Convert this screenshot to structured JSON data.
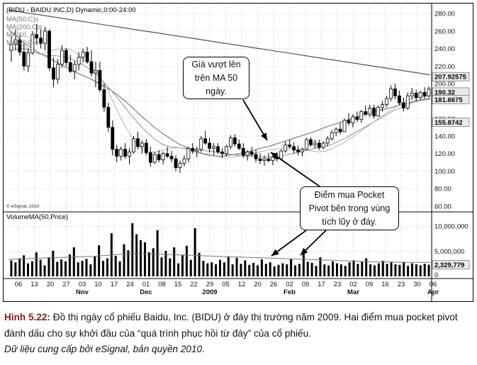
{
  "chart_data": {
    "type": "candlestick",
    "title": "(BIDU - BAIDU INC,D) Dynamic,0:00-24:00",
    "overlay_legend": [
      "MA(50,C)s",
      "MA(200,C)s",
      "MA(10,...)",
      "MA(20,C)s"
    ],
    "price_axis": {
      "ylim": [
        55,
        285
      ],
      "ticks": [
        60,
        80,
        100,
        120,
        140,
        160,
        180,
        200,
        220,
        240,
        260,
        280
      ],
      "tick_labels": [
        "60.00",
        "80.00",
        "100.00",
        "120.00",
        "140.00",
        "160.00",
        "180.00",
        "200.00",
        "220.00",
        "240.00",
        "260.00",
        "280.00"
      ],
      "highlight_labels": [
        {
          "value": 207.93,
          "text": "207.92575"
        },
        {
          "value": 190.32,
          "text": "190.32"
        },
        {
          "value": 181.67,
          "text": "181.6675"
        },
        {
          "value": 155.87,
          "text": "155.8742"
        }
      ]
    },
    "x_axis": {
      "day_labels": [
        "06",
        "13",
        "20",
        "27",
        "03",
        "10",
        "17",
        "24",
        "01",
        "08",
        "15",
        "22",
        "29",
        "05",
        "12",
        "20",
        "26",
        "02",
        "09",
        "17",
        "23",
        "02",
        "09",
        "16",
        "23",
        "30",
        "06"
      ],
      "month_labels": [
        {
          "text": "Nov",
          "day_index": 4
        },
        {
          "text": "Dec",
          "day_index": 8
        },
        {
          "text": "2009",
          "day_index": 12
        },
        {
          "text": "Feb",
          "day_index": 17
        },
        {
          "text": "Mar",
          "day_index": 21
        },
        {
          "text": "Apr",
          "day_index": 26
        }
      ]
    },
    "candles": [
      {
        "o": 238,
        "h": 255,
        "l": 225,
        "c": 245
      },
      {
        "o": 245,
        "h": 262,
        "l": 238,
        "c": 250
      },
      {
        "o": 250,
        "h": 256,
        "l": 232,
        "c": 236
      },
      {
        "o": 236,
        "h": 245,
        "l": 215,
        "c": 220
      },
      {
        "o": 220,
        "h": 240,
        "l": 213,
        "c": 235
      },
      {
        "o": 235,
        "h": 260,
        "l": 233,
        "c": 256
      },
      {
        "o": 256,
        "h": 268,
        "l": 245,
        "c": 252
      },
      {
        "o": 252,
        "h": 262,
        "l": 240,
        "c": 246
      },
      {
        "o": 246,
        "h": 265,
        "l": 238,
        "c": 260
      },
      {
        "o": 260,
        "h": 262,
        "l": 215,
        "c": 218
      },
      {
        "o": 218,
        "h": 230,
        "l": 196,
        "c": 205
      },
      {
        "o": 205,
        "h": 228,
        "l": 200,
        "c": 222
      },
      {
        "o": 222,
        "h": 244,
        "l": 218,
        "c": 238
      },
      {
        "o": 238,
        "h": 241,
        "l": 220,
        "c": 224
      },
      {
        "o": 224,
        "h": 233,
        "l": 212,
        "c": 214
      },
      {
        "o": 214,
        "h": 226,
        "l": 205,
        "c": 222
      },
      {
        "o": 222,
        "h": 236,
        "l": 215,
        "c": 230
      },
      {
        "o": 230,
        "h": 240,
        "l": 224,
        "c": 236
      },
      {
        "o": 236,
        "h": 242,
        "l": 223,
        "c": 225
      },
      {
        "o": 225,
        "h": 238,
        "l": 208,
        "c": 212
      },
      {
        "o": 212,
        "h": 225,
        "l": 196,
        "c": 215
      },
      {
        "o": 215,
        "h": 225,
        "l": 190,
        "c": 193
      },
      {
        "o": 193,
        "h": 200,
        "l": 168,
        "c": 173
      },
      {
        "o": 173,
        "h": 178,
        "l": 145,
        "c": 150
      },
      {
        "o": 150,
        "h": 158,
        "l": 118,
        "c": 125
      },
      {
        "o": 125,
        "h": 130,
        "l": 110,
        "c": 117
      },
      {
        "o": 117,
        "h": 128,
        "l": 112,
        "c": 125
      },
      {
        "o": 125,
        "h": 132,
        "l": 114,
        "c": 117
      },
      {
        "o": 117,
        "h": 126,
        "l": 108,
        "c": 122
      },
      {
        "o": 122,
        "h": 140,
        "l": 120,
        "c": 137
      },
      {
        "o": 137,
        "h": 145,
        "l": 125,
        "c": 128
      },
      {
        "o": 128,
        "h": 135,
        "l": 120,
        "c": 132
      },
      {
        "o": 132,
        "h": 137,
        "l": 118,
        "c": 121
      },
      {
        "o": 121,
        "h": 128,
        "l": 105,
        "c": 110
      },
      {
        "o": 110,
        "h": 122,
        "l": 108,
        "c": 119
      },
      {
        "o": 119,
        "h": 124,
        "l": 110,
        "c": 113
      },
      {
        "o": 113,
        "h": 122,
        "l": 108,
        "c": 120
      },
      {
        "o": 120,
        "h": 128,
        "l": 115,
        "c": 117
      },
      {
        "o": 117,
        "h": 123,
        "l": 110,
        "c": 114
      },
      {
        "o": 114,
        "h": 118,
        "l": 100,
        "c": 104
      },
      {
        "o": 104,
        "h": 112,
        "l": 98,
        "c": 109
      },
      {
        "o": 109,
        "h": 118,
        "l": 105,
        "c": 114
      },
      {
        "o": 114,
        "h": 128,
        "l": 110,
        "c": 126
      },
      {
        "o": 126,
        "h": 132,
        "l": 120,
        "c": 123
      },
      {
        "o": 123,
        "h": 128,
        "l": 116,
        "c": 125
      },
      {
        "o": 125,
        "h": 140,
        "l": 122,
        "c": 137
      },
      {
        "o": 137,
        "h": 146,
        "l": 130,
        "c": 132
      },
      {
        "o": 132,
        "h": 138,
        "l": 121,
        "c": 126
      },
      {
        "o": 126,
        "h": 132,
        "l": 118,
        "c": 128
      },
      {
        "o": 128,
        "h": 132,
        "l": 120,
        "c": 122
      },
      {
        "o": 122,
        "h": 126,
        "l": 115,
        "c": 120
      },
      {
        "o": 120,
        "h": 130,
        "l": 117,
        "c": 128
      },
      {
        "o": 128,
        "h": 141,
        "l": 125,
        "c": 138
      },
      {
        "o": 138,
        "h": 142,
        "l": 128,
        "c": 131
      },
      {
        "o": 131,
        "h": 136,
        "l": 124,
        "c": 126
      },
      {
        "o": 126,
        "h": 132,
        "l": 115,
        "c": 118
      },
      {
        "o": 118,
        "h": 124,
        "l": 112,
        "c": 122
      },
      {
        "o": 122,
        "h": 128,
        "l": 117,
        "c": 119
      },
      {
        "o": 119,
        "h": 124,
        "l": 110,
        "c": 114
      },
      {
        "o": 114,
        "h": 120,
        "l": 108,
        "c": 112
      },
      {
        "o": 112,
        "h": 118,
        "l": 106,
        "c": 114
      },
      {
        "o": 114,
        "h": 121,
        "l": 110,
        "c": 112
      },
      {
        "o": 112,
        "h": 118,
        "l": 107,
        "c": 116
      },
      {
        "o": 116,
        "h": 122,
        "l": 111,
        "c": 114
      },
      {
        "o": 114,
        "h": 125,
        "l": 112,
        "c": 123
      },
      {
        "o": 123,
        "h": 134,
        "l": 121,
        "c": 130
      },
      {
        "o": 130,
        "h": 136,
        "l": 126,
        "c": 128
      },
      {
        "o": 128,
        "h": 133,
        "l": 120,
        "c": 124
      },
      {
        "o": 124,
        "h": 129,
        "l": 118,
        "c": 122
      },
      {
        "o": 122,
        "h": 127,
        "l": 117,
        "c": 125
      },
      {
        "o": 125,
        "h": 138,
        "l": 124,
        "c": 136
      },
      {
        "o": 136,
        "h": 139,
        "l": 128,
        "c": 130
      },
      {
        "o": 130,
        "h": 136,
        "l": 126,
        "c": 132
      },
      {
        "o": 132,
        "h": 136,
        "l": 124,
        "c": 127
      },
      {
        "o": 127,
        "h": 134,
        "l": 125,
        "c": 132
      },
      {
        "o": 132,
        "h": 140,
        "l": 128,
        "c": 137
      },
      {
        "o": 137,
        "h": 147,
        "l": 135,
        "c": 144
      },
      {
        "o": 144,
        "h": 150,
        "l": 140,
        "c": 148
      },
      {
        "o": 148,
        "h": 155,
        "l": 142,
        "c": 145
      },
      {
        "o": 145,
        "h": 160,
        "l": 145,
        "c": 158
      },
      {
        "o": 158,
        "h": 166,
        "l": 152,
        "c": 155
      },
      {
        "o": 155,
        "h": 165,
        "l": 150,
        "c": 162
      },
      {
        "o": 162,
        "h": 168,
        "l": 156,
        "c": 159
      },
      {
        "o": 159,
        "h": 170,
        "l": 155,
        "c": 168
      },
      {
        "o": 168,
        "h": 175,
        "l": 163,
        "c": 165
      },
      {
        "o": 165,
        "h": 176,
        "l": 162,
        "c": 172
      },
      {
        "o": 172,
        "h": 176,
        "l": 160,
        "c": 163
      },
      {
        "o": 163,
        "h": 175,
        "l": 162,
        "c": 173
      },
      {
        "o": 173,
        "h": 180,
        "l": 168,
        "c": 176
      },
      {
        "o": 176,
        "h": 186,
        "l": 173,
        "c": 183
      },
      {
        "o": 183,
        "h": 198,
        "l": 180,
        "c": 194
      },
      {
        "o": 194,
        "h": 200,
        "l": 182,
        "c": 186
      },
      {
        "o": 186,
        "h": 192,
        "l": 175,
        "c": 178
      },
      {
        "o": 178,
        "h": 184,
        "l": 168,
        "c": 172
      },
      {
        "o": 172,
        "h": 190,
        "l": 170,
        "c": 186
      },
      {
        "o": 186,
        "h": 195,
        "l": 182,
        "c": 189
      },
      {
        "o": 189,
        "h": 193,
        "l": 180,
        "c": 184
      },
      {
        "o": 184,
        "h": 192,
        "l": 182,
        "c": 190
      },
      {
        "o": 190,
        "h": 196,
        "l": 183,
        "c": 186
      },
      {
        "o": 186,
        "h": 197,
        "l": 184,
        "c": 194
      }
    ],
    "moving_averages": [
      {
        "name": "MA(200,C)",
        "values": [
          284,
          282,
          280,
          278,
          276,
          274,
          272,
          270,
          268,
          266,
          264,
          262,
          260,
          258,
          256,
          254,
          252,
          250,
          248,
          246,
          244,
          242,
          240,
          238,
          236,
          234,
          232,
          230,
          228,
          226,
          224,
          222,
          220,
          218,
          216,
          214,
          212,
          210
        ]
      },
      {
        "name": "MA(50,C)",
        "values": [
          262,
          254,
          246,
          240,
          234,
          229,
          224,
          219,
          214,
          210,
          206,
          201,
          196,
          190,
          183,
          175,
          166,
          158,
          150,
          143,
          137,
          131,
          127,
          123,
          120,
          118,
          117,
          118,
          119,
          121,
          123,
          126,
          128,
          131,
          134,
          137,
          140,
          143,
          146,
          150,
          153,
          156,
          159,
          162,
          165,
          168,
          170,
          172,
          175,
          177,
          180,
          182,
          183
        ]
      },
      {
        "name": "MA(20,C)",
        "values": [
          238,
          239,
          240,
          238,
          234,
          232,
          232,
          231,
          229,
          225,
          220,
          214,
          206,
          196,
          186,
          175,
          164,
          154,
          145,
          137,
          131,
          128,
          127,
          126,
          125,
          124,
          123,
          122,
          120,
          119,
          118,
          117,
          117,
          116,
          116,
          117,
          118,
          120,
          122,
          124,
          126,
          128,
          130,
          134,
          138,
          143,
          148,
          153,
          158,
          163,
          168,
          172,
          176,
          179,
          181,
          182
        ]
      },
      {
        "name": "MA(10,C)",
        "values": [
          244,
          246,
          244,
          238,
          234,
          235,
          238,
          240,
          240,
          236,
          229,
          221,
          212,
          199,
          182,
          164,
          148,
          135,
          126,
          122,
          122,
          124,
          126,
          127,
          125,
          122,
          120,
          118,
          117,
          116,
          116,
          117,
          118,
          120,
          122,
          124,
          125,
          126,
          126,
          125,
          124,
          123,
          122,
          123,
          127,
          131,
          136,
          142,
          148,
          154,
          160,
          166,
          171,
          177,
          181,
          184,
          185,
          186
        ]
      }
    ],
    "volume": {
      "title": "VolumeMA(50,Price)",
      "ylim": [
        0,
        12000000
      ],
      "ticks": [
        5000000,
        10000000
      ],
      "tick_labels": [
        "5,000,000",
        "10,000,000"
      ],
      "last_value_label": "2,329,779",
      "values": [
        3.2,
        2.8,
        3.6,
        4.2,
        2.6,
        3.0,
        4.8,
        3.3,
        2.2,
        3.8,
        5.1,
        2.9,
        3.4,
        3.0,
        4.4,
        5.8,
        2.8,
        3.1,
        3.5,
        2.4,
        4.0,
        6.2,
        3.1,
        3.6,
        8.6,
        4.1,
        3.0,
        6.4,
        5.2,
        10.6,
        8.4,
        7.2,
        6.8,
        4.8,
        5.6,
        9.2,
        3.8,
        5.1,
        3.6,
        5.8,
        2.6,
        4.2,
        6.1,
        3.3,
        9.6,
        4.7,
        3.1,
        2.6,
        2.8,
        2.4,
        3.3,
        2.8,
        3.9,
        2.4,
        3.7,
        2.5,
        3.2,
        2.3,
        2.7,
        2.2,
        3.4,
        2.5,
        2.8,
        2.0,
        2.3,
        2.6,
        2.4,
        3.5,
        2.2,
        2.5,
        4.9,
        2.9,
        2.7,
        2.1,
        3.8,
        2.4,
        2.2,
        3.0,
        2.6,
        2.4,
        2.1,
        2.8,
        3.2,
        2.5,
        2.9,
        3.6,
        2.4,
        2.2,
        2.6,
        3.1,
        2.5,
        2.8,
        2.4,
        2.3,
        2.9,
        2.1,
        2.6,
        2.4,
        2.2,
        2.5,
        2.33
      ],
      "ma_values": [
        3.4,
        3.5,
        3.6,
        3.7,
        3.8,
        3.9,
        4.0,
        4.2,
        4.4,
        4.5,
        4.5,
        4.4,
        4.3,
        4.2,
        4.1,
        4.0,
        3.9,
        3.8,
        3.7,
        3.6,
        3.5,
        3.4,
        3.3,
        3.2,
        3.1,
        3.0,
        2.9,
        2.9,
        2.8,
        2.8,
        2.8
      ]
    },
    "source_note": "© eSignal, 2010",
    "annotations": [
      {
        "text": "Giá vượt lên trên MA 50 ngày.",
        "target_candle_index": 64
      },
      {
        "text": "Điểm mua Pocket Pivot bên trong vùng tích lũy ở đáy.",
        "target_candle_index": 62
      }
    ],
    "annotation_lines": [
      "Giá vượt lên",
      "trên MA 50",
      "ngày.",
      "Điểm mua Pocket",
      "Pivot bên trong vùng",
      "tích lũy ở đáy."
    ]
  },
  "caption": {
    "figure_label": "Hình 5.22:",
    "text": " Đồ thị ngày cổ phiếu Baidu, Inc. (BIDU) ở đáy thị trường năm 2009. Hai điểm mua pocket pivot đánh dấu cho sự khởi đầu của “quá trình phục hồi từ đáy” của cổ phiếu.",
    "source": "Dữ liệu cung cấp bởi eSignal, bản quyền 2010."
  }
}
